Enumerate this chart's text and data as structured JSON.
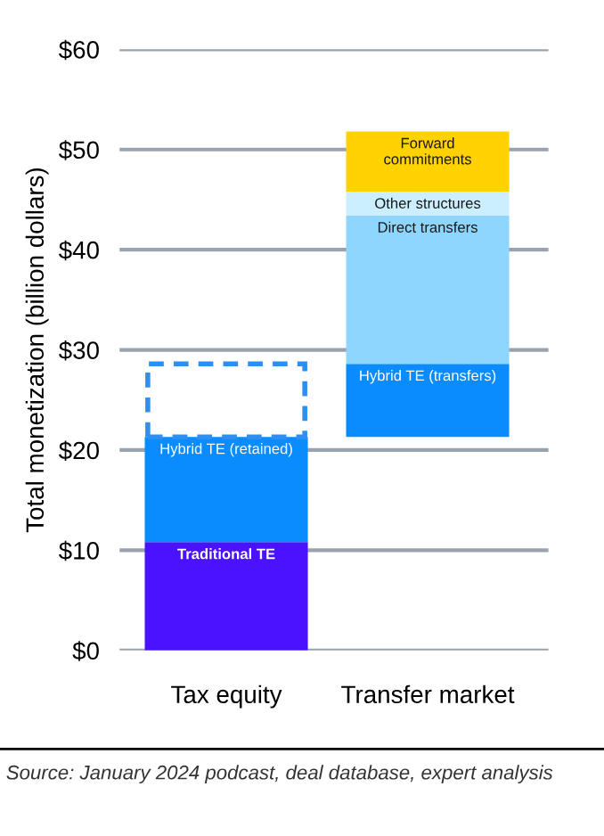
{
  "chart_data": {
    "type": "bar",
    "ylabel": "Total monetization (billion dollars)",
    "categories": [
      "Tax equity",
      "Transfer market"
    ],
    "series": [
      {
        "name": "Traditional TE",
        "color": "#4a12ff",
        "base": [
          0,
          null
        ],
        "values": [
          10.8,
          null
        ]
      },
      {
        "name": "Hybrid TE (retained)",
        "color": "#0a8cff",
        "base": [
          10.8,
          null
        ],
        "values": [
          10.5,
          null
        ]
      },
      {
        "color": "#2f8ff0",
        "line_style": "dashed",
        "base": [
          21.3,
          null
        ],
        "values": [
          7.3,
          null
        ]
      },
      {
        "name": "Hybrid TE (transfers)",
        "color": "#0a8cff",
        "base": [
          null,
          21.3
        ],
        "values": [
          null,
          7.3
        ]
      },
      {
        "name": "Direct transfers",
        "color": "#8fd6ff",
        "base": [
          null,
          28.6
        ],
        "values": [
          null,
          14.8
        ]
      },
      {
        "name": "Other structures",
        "color": "#ccefff",
        "base": [
          null,
          43.4
        ],
        "values": [
          null,
          2.4
        ]
      },
      {
        "name": "Forward\ncommitments",
        "color": "#ffd200",
        "base": [
          null,
          45.8
        ],
        "values": [
          null,
          6.0
        ]
      }
    ],
    "ylim": [
      0,
      60
    ],
    "yticks": [
      {
        "value": 0,
        "label": "$0"
      },
      {
        "value": 10,
        "label": "$10"
      },
      {
        "value": 20,
        "label": "$20"
      },
      {
        "value": 30,
        "label": "$30"
      },
      {
        "value": 40,
        "label": "$40"
      },
      {
        "value": 50,
        "label": "$50"
      },
      {
        "value": 60,
        "label": "$60"
      }
    ],
    "grid": "y",
    "legend": false,
    "annotations": [
      "Source: January 2024 podcast, deal database, expert analysis"
    ]
  }
}
